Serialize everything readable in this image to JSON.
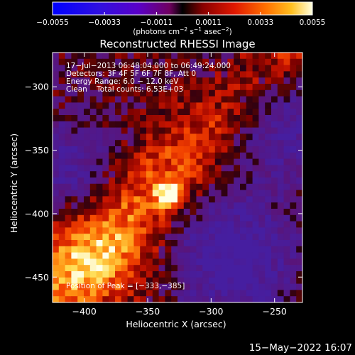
{
  "chart_data": {
    "type": "heatmap",
    "title": "Reconstructed RHESSI Image",
    "xlabel": "Heliocentric X (arcsec)",
    "ylabel": "Heliocentric Y (arcsec)",
    "xlim": [
      -425,
      -228
    ],
    "ylim": [
      -470,
      -273
    ],
    "x_ticks": [
      {
        "value": -400,
        "label": "−400"
      },
      {
        "value": -350,
        "label": "−350"
      },
      {
        "value": -300,
        "label": "−300"
      },
      {
        "value": -250,
        "label": "−250"
      }
    ],
    "y_ticks": [
      {
        "value": -300,
        "label": "−300"
      },
      {
        "value": -350,
        "label": "−350"
      },
      {
        "value": -400,
        "label": "−400"
      },
      {
        "value": -450,
        "label": "−450"
      }
    ],
    "colorbar": {
      "min": -0.0055,
      "max": 0.0055,
      "ticks": [
        {
          "value": -0.0055,
          "label": "−0.0055"
        },
        {
          "value": -0.0033,
          "label": "−0.0033"
        },
        {
          "value": -0.0011,
          "label": "−0.0011"
        },
        {
          "value": 0.0011,
          "label": "0.0011"
        },
        {
          "value": 0.0033,
          "label": "0.0033"
        },
        {
          "value": 0.0055,
          "label": "0.0055"
        }
      ],
      "unit_main": "(photons cm",
      "unit_sup1": "−2",
      "unit_mid": " s",
      "unit_sup2": "−1",
      "unit_mid2": " asec",
      "unit_sup3": "−2",
      "unit_end": ")"
    },
    "annotations": [
      "17−Jul−2013 06:48:04.000 to 06:49:24.000",
      "Detectors: 3F 4F 5F 6F 7F 8F, Att 0",
      "Energy Range: 6.0 − 12.0 keV",
      "Clean    Total counts: 6.53E+03"
    ],
    "peak_text": "Position of Peak = [−333,−385]",
    "peak": {
      "x": -333,
      "y": -385
    },
    "colors": {
      "colormap": [
        "#000000",
        "#0000ff",
        "#5a00c8",
        "#7a2a9a",
        "#b01020",
        "#ff3000",
        "#ff9a00",
        "#ffff40",
        "#ffffff"
      ]
    }
  },
  "footer": {
    "timestamp": "15−May−2022 16:07"
  }
}
